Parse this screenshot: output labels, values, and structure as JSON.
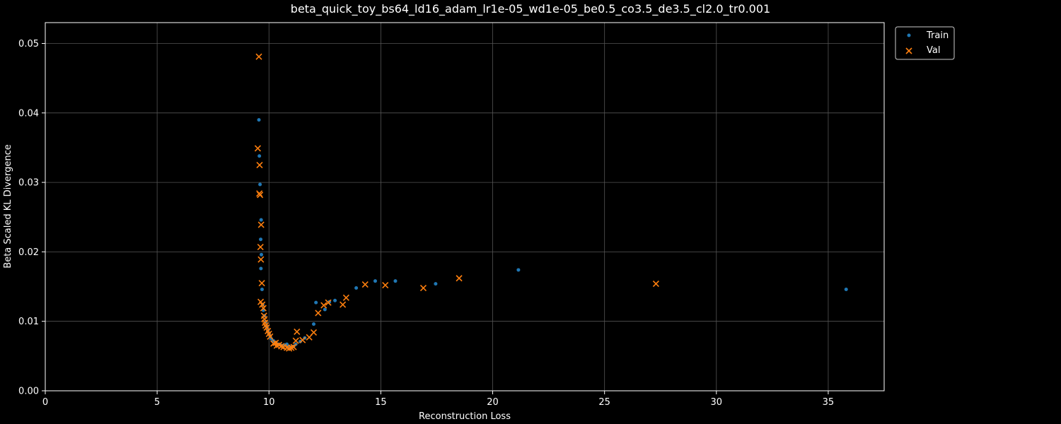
{
  "colors": {
    "background": "#000000",
    "foreground": "#ffffff",
    "grid": "#555555",
    "train": "#1f77b4",
    "val": "#ff7f0e"
  },
  "chart_data": {
    "type": "scatter",
    "title": "beta_quick_toy_bs64_ld16_adam_lr1e-05_wd1e-05_be0.5_co3.5_de3.5_cl2.0_tr0.001",
    "xlabel": "Reconstruction Loss",
    "ylabel": "Beta Scaled KL Divergence",
    "xlim": [
      0,
      37.5
    ],
    "ylim": [
      0,
      0.053
    ],
    "xticks": [
      0,
      5,
      10,
      15,
      20,
      25,
      30,
      35
    ],
    "yticks": [
      0.0,
      0.01,
      0.02,
      0.03,
      0.04,
      0.05
    ],
    "xtick_labels": [
      "0",
      "5",
      "10",
      "15",
      "20",
      "25",
      "30",
      "35"
    ],
    "ytick_labels": [
      "0.00",
      "0.01",
      "0.02",
      "0.03",
      "0.04",
      "0.05"
    ],
    "grid": true,
    "legend": "outside-top-right",
    "series": [
      {
        "name": "Train",
        "marker": "dot",
        "color": "#1f77b4",
        "x": [
          9.55,
          9.57,
          9.6,
          9.65,
          9.63,
          9.66,
          9.64,
          9.69,
          9.72,
          9.75,
          9.8,
          9.85,
          9.9,
          9.95,
          10.0,
          10.05,
          10.1,
          10.2,
          10.3,
          10.4,
          10.5,
          10.6,
          10.7,
          10.8,
          10.9,
          11.0,
          11.1,
          11.2,
          11.4,
          11.6,
          12.0,
          12.1,
          12.5,
          12.7,
          12.95,
          13.9,
          14.75,
          15.65,
          17.45,
          21.15,
          35.8
        ],
        "y": [
          0.039,
          0.0338,
          0.0297,
          0.0246,
          0.0218,
          0.0196,
          0.0176,
          0.0146,
          0.0124,
          0.0116,
          0.0108,
          0.0099,
          0.0092,
          0.0087,
          0.0083,
          0.0079,
          0.0075,
          0.0072,
          0.0069,
          0.0067,
          0.0066,
          0.0065,
          0.0066,
          0.0067,
          0.0064,
          0.0062,
          0.0064,
          0.0067,
          0.0071,
          0.0076,
          0.0096,
          0.0127,
          0.0117,
          0.0128,
          0.013,
          0.0148,
          0.0158,
          0.0158,
          0.0154,
          0.0174,
          0.0146
        ]
      },
      {
        "name": "Val",
        "marker": "x",
        "color": "#ff7f0e",
        "x": [
          9.55,
          9.5,
          9.58,
          9.57,
          9.6,
          9.62,
          9.65,
          9.64,
          9.68,
          9.63,
          9.7,
          9.75,
          9.78,
          9.8,
          9.82,
          9.85,
          9.9,
          9.95,
          10.0,
          10.05,
          10.2,
          10.3,
          10.35,
          10.45,
          10.55,
          10.65,
          10.8,
          10.9,
          11.0,
          11.1,
          11.2,
          11.25,
          11.5,
          11.8,
          12.0,
          12.2,
          12.45,
          12.65,
          13.3,
          13.45,
          14.3,
          15.2,
          16.9,
          18.5,
          27.3
        ],
        "y": [
          0.0481,
          0.0349,
          0.0325,
          0.0284,
          0.0282,
          0.0207,
          0.0239,
          0.0189,
          0.0155,
          0.0128,
          0.0124,
          0.0119,
          0.0108,
          0.0103,
          0.0098,
          0.0094,
          0.0091,
          0.0086,
          0.0082,
          0.0078,
          0.0068,
          0.0069,
          0.0065,
          0.0066,
          0.0064,
          0.0063,
          0.0062,
          0.0061,
          0.0062,
          0.0063,
          0.0072,
          0.0085,
          0.0073,
          0.0077,
          0.0084,
          0.0112,
          0.0123,
          0.0127,
          0.0124,
          0.0134,
          0.0153,
          0.0152,
          0.0148,
          0.0162,
          0.0154
        ]
      }
    ]
  }
}
